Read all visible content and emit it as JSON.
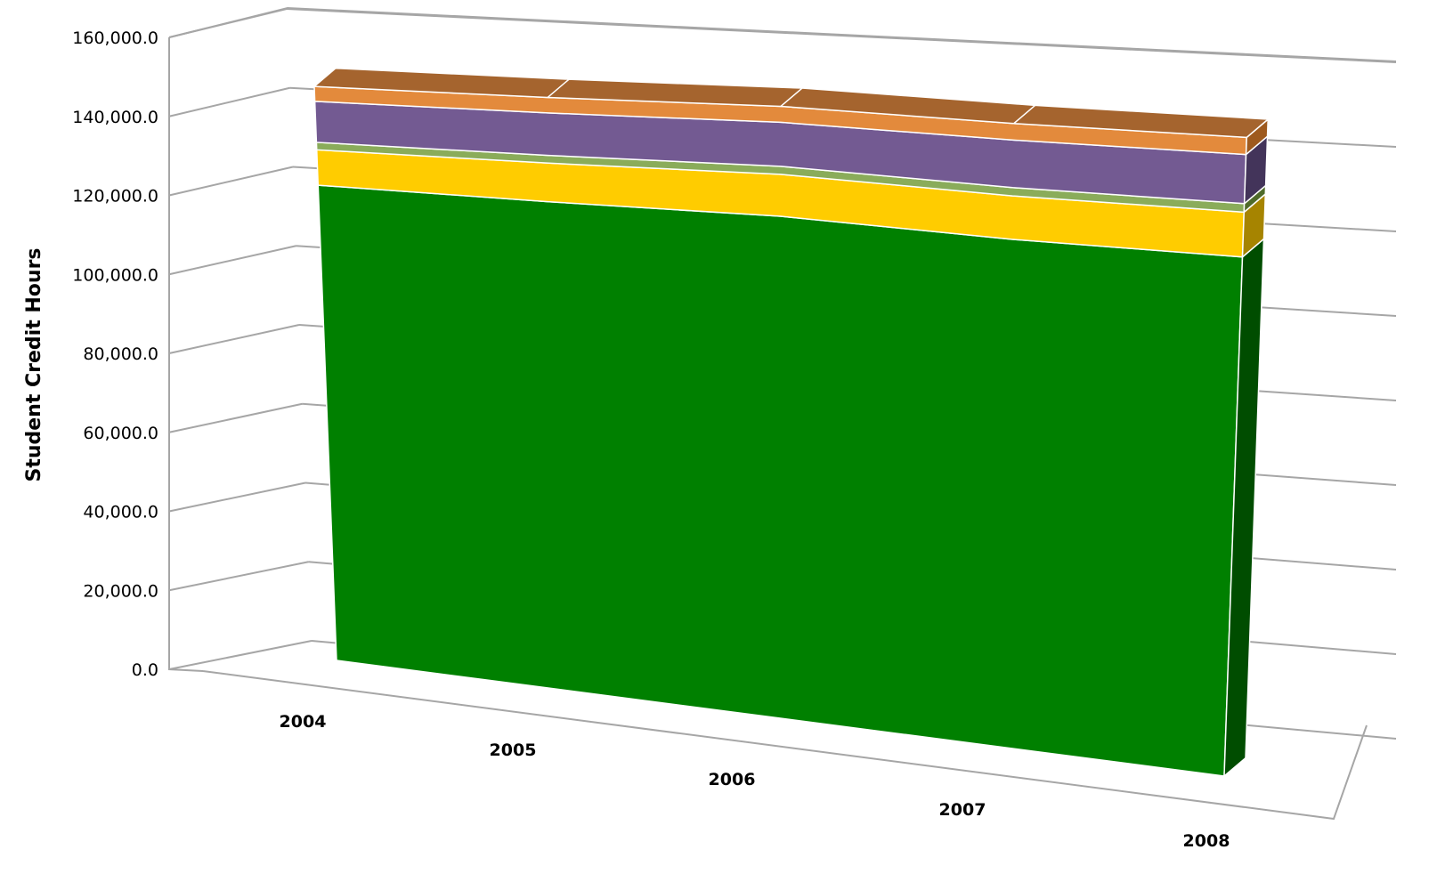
{
  "chart_data": {
    "type": "area",
    "style": "3d-stacked-area",
    "title": "",
    "xlabel": "",
    "ylabel": "Student Credit Hours",
    "categories": [
      "2004",
      "2005",
      "2006",
      "2007",
      "2008"
    ],
    "ylim": [
      0,
      160000
    ],
    "yticks": [
      0,
      20000,
      40000,
      60000,
      80000,
      100000,
      120000,
      140000,
      160000
    ],
    "ytick_labels": [
      "0.0",
      "20,000.0",
      "40,000.0",
      "60,000.0",
      "80,000.0",
      "100,000.0",
      "120,000.0",
      "140,000.0",
      "160,000.0"
    ],
    "grid": true,
    "legend": "none",
    "series": [
      {
        "values": [
          127500,
          126200,
          125500,
          122800,
          121500
        ],
        "color": "#008000",
        "side_color": "#004d00"
      },
      {
        "values": [
          9500,
          10000,
          10500,
          10500,
          10500
        ],
        "color": "#ffcc00",
        "side_color": "#a68400"
      },
      {
        "values": [
          2000,
          2000,
          2000,
          2000,
          2000
        ],
        "color": "#8aac5a",
        "side_color": "#4f6b2a"
      },
      {
        "values": [
          11000,
          11000,
          11000,
          11500,
          11500
        ],
        "color": "#735a92",
        "side_color": "#43345a"
      },
      {
        "values": [
          4000,
          4000,
          4000,
          4000,
          4000
        ],
        "color": "#e38a3c",
        "side_color": "#9e5a1e"
      }
    ],
    "top_color": "#a5642e"
  }
}
